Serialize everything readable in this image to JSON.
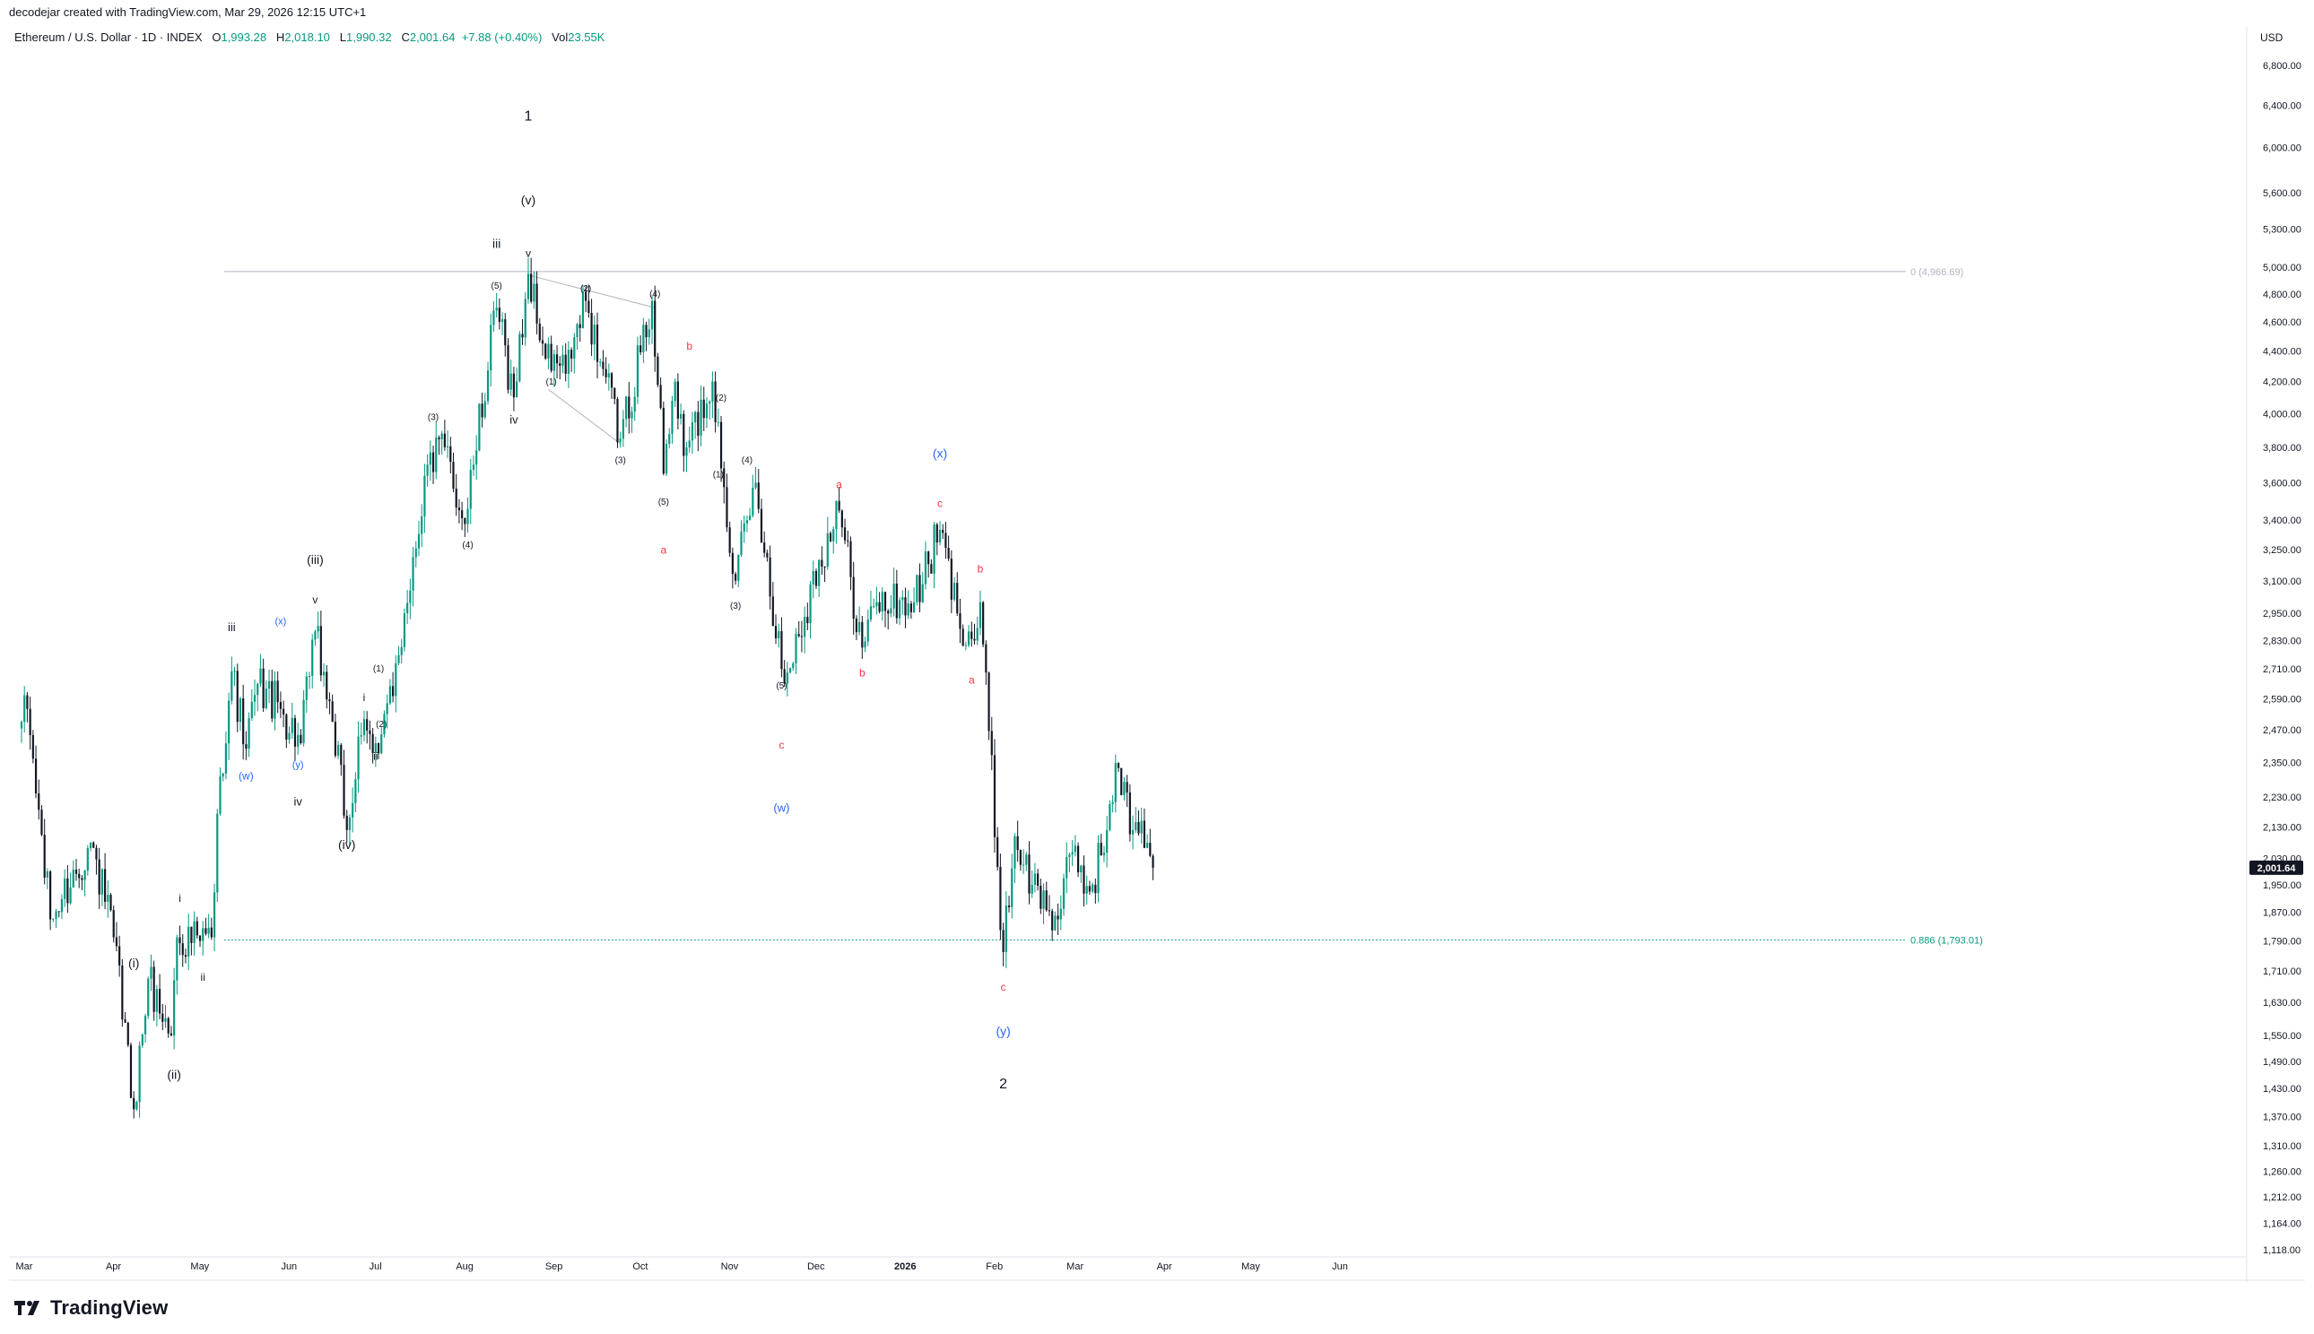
{
  "header": {
    "credit": "decodejar created with TradingView.com, Mar 29, 2026 12:15 UTC+1"
  },
  "legend": {
    "symbol": "Ethereum / U.S. Dollar · 1D · INDEX",
    "open_label": "O",
    "open": "1,993.28",
    "high_label": "H",
    "high": "2,018.10",
    "low_label": "L",
    "low": "1,990.32",
    "close_label": "C",
    "close": "2,001.64",
    "change": "+7.88 (+0.40%)",
    "vol_label": "Vol",
    "vol": "23.55K"
  },
  "axis": {
    "currency": "USD"
  },
  "brand": {
    "name": "TradingView"
  },
  "colors": {
    "up": "#089981",
    "down": "#131722",
    "blue": "#2962ff",
    "red": "#f23645",
    "fib0": "#b2b5be",
    "fib886": "#089981"
  },
  "chart_data": {
    "type": "candlestick",
    "title": "Ethereum / U.S. Dollar · 1D · INDEX",
    "y_scale": "log",
    "ylim": [
      1090,
      7000
    ],
    "y_ticks": [
      "6,800.00",
      "6,400.00",
      "6,000.00",
      "5,600.00",
      "5,300.00",
      "5,000.00",
      "4,800.00",
      "4,600.00",
      "4,400.00",
      "4,200.00",
      "4,000.00",
      "3,800.00",
      "3,600.00",
      "3,400.00",
      "3,250.00",
      "3,100.00",
      "2,950.00",
      "2,830.00",
      "2,710.00",
      "2,590.00",
      "2,470.00",
      "2,350.00",
      "2,230.00",
      "2,130.00",
      "2,030.00",
      "1,950.00",
      "1,870.00",
      "1,790.00",
      "1,710.00",
      "1,630.00",
      "1,550.00",
      "1,490.00",
      "1,430.00",
      "1,370.00",
      "1,310.00",
      "1,260.00",
      "1,212.00",
      "1,164.00",
      "1,118.00"
    ],
    "x_ticks": [
      {
        "label": "Mar",
        "date": "2025-03-01"
      },
      {
        "label": "Apr",
        "date": "2025-04-01"
      },
      {
        "label": "May",
        "date": "2025-05-01"
      },
      {
        "label": "Jun",
        "date": "2025-06-01"
      },
      {
        "label": "Jul",
        "date": "2025-07-01"
      },
      {
        "label": "Aug",
        "date": "2025-08-01"
      },
      {
        "label": "Sep",
        "date": "2025-09-01"
      },
      {
        "label": "Oct",
        "date": "2025-10-01"
      },
      {
        "label": "Nov",
        "date": "2025-11-01"
      },
      {
        "label": "Dec",
        "date": "2025-12-01"
      },
      {
        "label": "2026",
        "date": "2026-01-01"
      },
      {
        "label": "Feb",
        "date": "2026-02-01"
      },
      {
        "label": "Mar",
        "date": "2026-03-01"
      },
      {
        "label": "Apr",
        "date": "2026-04-01"
      },
      {
        "label": "May",
        "date": "2026-05-01"
      },
      {
        "label": "Jun",
        "date": "2026-06-01"
      }
    ],
    "last_price": "2,001.64",
    "fib_levels": [
      {
        "label": "0 (4,966.69)",
        "value": 4966.69
      },
      {
        "label": "0.886 (1,793.01)",
        "value": 1793.01
      }
    ],
    "swing_points": [
      {
        "date": "2025-03-01",
        "price": 2500
      },
      {
        "date": "2025-03-03",
        "price": 2550
      },
      {
        "date": "2025-03-11",
        "price": 1850
      },
      {
        "date": "2025-03-25",
        "price": 2080
      },
      {
        "date": "2025-04-02",
        "price": 1800
      },
      {
        "date": "2025-04-09",
        "price": 1385
      },
      {
        "date": "2025-04-14",
        "price": 1690
      },
      {
        "date": "2025-04-22",
        "price": 1550
      },
      {
        "date": "2025-04-24",
        "price": 1800
      },
      {
        "date": "2025-05-02",
        "price": 1790
      },
      {
        "date": "2025-05-06",
        "price": 1800
      },
      {
        "date": "2025-05-09",
        "price": 2300
      },
      {
        "date": "2025-05-13",
        "price": 2700
      },
      {
        "date": "2025-05-18",
        "price": 2400
      },
      {
        "date": "2025-05-22",
        "price": 2650
      },
      {
        "date": "2025-05-30",
        "price": 2550
      },
      {
        "date": "2025-06-06",
        "price": 2420
      },
      {
        "date": "2025-06-11",
        "price": 2870
      },
      {
        "date": "2025-06-17",
        "price": 2500
      },
      {
        "date": "2025-06-22",
        "price": 2120
      },
      {
        "date": "2025-06-27",
        "price": 2450
      },
      {
        "date": "2025-07-02",
        "price": 2420
      },
      {
        "date": "2025-07-08",
        "price": 2600
      },
      {
        "date": "2025-07-12",
        "price": 2950
      },
      {
        "date": "2025-07-20",
        "price": 3700
      },
      {
        "date": "2025-07-26",
        "price": 3800
      },
      {
        "date": "2025-08-02",
        "price": 3380
      },
      {
        "date": "2025-08-05",
        "price": 3700
      },
      {
        "date": "2025-08-13",
        "price": 4700
      },
      {
        "date": "2025-08-19",
        "price": 4100
      },
      {
        "date": "2025-08-24",
        "price": 4950
      },
      {
        "date": "2025-08-30",
        "price": 4350
      },
      {
        "date": "2025-09-06",
        "price": 4250
      },
      {
        "date": "2025-09-13",
        "price": 4750
      },
      {
        "date": "2025-09-25",
        "price": 3850
      },
      {
        "date": "2025-10-06",
        "price": 4750
      },
      {
        "date": "2025-10-10",
        "price": 3650
      },
      {
        "date": "2025-10-14",
        "price": 4200
      },
      {
        "date": "2025-10-17",
        "price": 3750
      },
      {
        "date": "2025-10-27",
        "price": 4200
      },
      {
        "date": "2025-11-04",
        "price": 3100
      },
      {
        "date": "2025-11-11",
        "price": 3600
      },
      {
        "date": "2025-11-21",
        "price": 2650
      },
      {
        "date": "2025-12-03",
        "price": 3200
      },
      {
        "date": "2025-12-10",
        "price": 3450
      },
      {
        "date": "2025-12-18",
        "price": 2800
      },
      {
        "date": "2025-12-23",
        "price": 3000
      },
      {
        "date": "2026-01-05",
        "price": 3000
      },
      {
        "date": "2026-01-14",
        "price": 3350
      },
      {
        "date": "2026-01-20",
        "price": 2950
      },
      {
        "date": "2026-01-26",
        "price": 2830
      },
      {
        "date": "2026-01-28",
        "price": 3000
      },
      {
        "date": "2026-02-05",
        "price": 1760
      },
      {
        "date": "2026-02-09",
        "price": 2100
      },
      {
        "date": "2026-02-15",
        "price": 1950
      },
      {
        "date": "2026-02-24",
        "price": 1850
      },
      {
        "date": "2026-03-01",
        "price": 2050
      },
      {
        "date": "2026-03-07",
        "price": 1930
      },
      {
        "date": "2026-03-13",
        "price": 2120
      },
      {
        "date": "2026-03-17",
        "price": 2330
      },
      {
        "date": "2026-03-22",
        "price": 2120
      },
      {
        "date": "2026-03-25",
        "price": 2150
      },
      {
        "date": "2026-03-29",
        "price": 2001.64
      }
    ],
    "triangle": [
      {
        "date": "2025-08-24",
        "price": 4940
      },
      {
        "date": "2025-10-07",
        "price": 4700
      },
      {
        "date": "2025-08-31",
        "price": 4150
      },
      {
        "date": "2025-09-25",
        "price": 3820
      }
    ],
    "wave_labels": [
      {
        "text": "(i)",
        "date": "2025-04-09",
        "price": 1720,
        "color": "#131722",
        "size": 14
      },
      {
        "text": "(ii)",
        "date": "2025-04-23",
        "price": 1450,
        "color": "#131722",
        "size": 14
      },
      {
        "text": "i",
        "date": "2025-04-25",
        "price": 1900,
        "color": "#131722",
        "size": 12
      },
      {
        "text": "ii",
        "date": "2025-05-03",
        "price": 1685,
        "color": "#131722",
        "size": 12
      },
      {
        "text": "iii",
        "date": "2025-05-13",
        "price": 2870,
        "color": "#131722",
        "size": 13
      },
      {
        "text": "(w)",
        "date": "2025-05-18",
        "price": 2290,
        "color": "#2962ff",
        "size": 12
      },
      {
        "text": "(x)",
        "date": "2025-05-30",
        "price": 2900,
        "color": "#2962ff",
        "size": 11
      },
      {
        "text": "(y)",
        "date": "2025-06-05",
        "price": 2330,
        "color": "#2962ff",
        "size": 11
      },
      {
        "text": "iv",
        "date": "2025-06-05",
        "price": 2200,
        "color": "#131722",
        "size": 13
      },
      {
        "text": "(iii)",
        "date": "2025-06-11",
        "price": 3180,
        "color": "#131722",
        "size": 14
      },
      {
        "text": "v",
        "date": "2025-06-11",
        "price": 2995,
        "color": "#131722",
        "size": 12
      },
      {
        "text": "(iv)",
        "date": "2025-06-22",
        "price": 2060,
        "color": "#131722",
        "size": 14
      },
      {
        "text": "i",
        "date": "2025-06-28",
        "price": 2580,
        "color": "#131722",
        "size": 12
      },
      {
        "text": "ii",
        "date": "2025-07-02",
        "price": 2360,
        "color": "#131722",
        "size": 12
      },
      {
        "text": "(1)",
        "date": "2025-07-03",
        "price": 2700,
        "color": "#131722",
        "size": 10
      },
      {
        "text": "(2)",
        "date": "2025-07-04",
        "price": 2480,
        "color": "#131722",
        "size": 10
      },
      {
        "text": "(3)",
        "date": "2025-07-22",
        "price": 3960,
        "color": "#131722",
        "size": 10
      },
      {
        "text": "(4)",
        "date": "2025-08-03",
        "price": 3260,
        "color": "#131722",
        "size": 10
      },
      {
        "text": "iii",
        "date": "2025-08-13",
        "price": 5150,
        "color": "#131722",
        "size": 14
      },
      {
        "text": "(5)",
        "date": "2025-08-13",
        "price": 4840,
        "color": "#131722",
        "size": 10
      },
      {
        "text": "iv",
        "date": "2025-08-19",
        "price": 3940,
        "color": "#131722",
        "size": 13
      },
      {
        "text": "1",
        "date": "2025-08-24",
        "price": 6250,
        "color": "#131722",
        "size": 16
      },
      {
        "text": "(v)",
        "date": "2025-08-24",
        "price": 5500,
        "color": "#131722",
        "size": 14
      },
      {
        "text": "v",
        "date": "2025-08-24",
        "price": 5080,
        "color": "#131722",
        "size": 12
      },
      {
        "text": "(1)",
        "date": "2025-09-01",
        "price": 4180,
        "color": "#131722",
        "size": 10
      },
      {
        "text": "(2)",
        "date": "2025-09-13",
        "price": 4820,
        "color": "#131722",
        "size": 10
      },
      {
        "text": "(3)",
        "date": "2025-09-25",
        "price": 3710,
        "color": "#131722",
        "size": 10
      },
      {
        "text": "(4)",
        "date": "2025-10-07",
        "price": 4780,
        "color": "#131722",
        "size": 10
      },
      {
        "text": "(5)",
        "date": "2025-10-10",
        "price": 3480,
        "color": "#131722",
        "size": 10
      },
      {
        "text": "a",
        "date": "2025-10-10",
        "price": 3230,
        "color": "#f23645",
        "size": 12
      },
      {
        "text": "b",
        "date": "2025-10-19",
        "price": 4410,
        "color": "#f23645",
        "size": 12
      },
      {
        "text": "(1)",
        "date": "2025-10-29",
        "price": 3630,
        "color": "#131722",
        "size": 10
      },
      {
        "text": "(2)",
        "date": "2025-10-30",
        "price": 4080,
        "color": "#131722",
        "size": 10
      },
      {
        "text": "(3)",
        "date": "2025-11-04",
        "price": 2970,
        "color": "#131722",
        "size": 10
      },
      {
        "text": "(4)",
        "date": "2025-11-08",
        "price": 3710,
        "color": "#131722",
        "size": 10
      },
      {
        "text": "(5)",
        "date": "2025-11-20",
        "price": 2630,
        "color": "#131722",
        "size": 10
      },
      {
        "text": "c",
        "date": "2025-11-20",
        "price": 2400,
        "color": "#f23645",
        "size": 12
      },
      {
        "text": "(w)",
        "date": "2025-11-20",
        "price": 2180,
        "color": "#2962ff",
        "size": 13
      },
      {
        "text": "a",
        "date": "2025-12-10",
        "price": 3570,
        "color": "#f23645",
        "size": 12
      },
      {
        "text": "b",
        "date": "2025-12-18",
        "price": 2680,
        "color": "#f23645",
        "size": 12
      },
      {
        "text": "(x)",
        "date": "2026-01-14",
        "price": 3740,
        "color": "#2962ff",
        "size": 14
      },
      {
        "text": "c",
        "date": "2026-01-14",
        "price": 3470,
        "color": "#f23645",
        "size": 12
      },
      {
        "text": "b",
        "date": "2026-01-28",
        "price": 3140,
        "color": "#f23645",
        "size": 12
      },
      {
        "text": "a",
        "date": "2026-01-25",
        "price": 2650,
        "color": "#f23645",
        "size": 12
      },
      {
        "text": "c",
        "date": "2026-02-05",
        "price": 1660,
        "color": "#f23645",
        "size": 12
      },
      {
        "text": "(y)",
        "date": "2026-02-05",
        "price": 1550,
        "color": "#2962ff",
        "size": 14
      },
      {
        "text": "2",
        "date": "2026-02-05",
        "price": 1430,
        "color": "#131722",
        "size": 16
      }
    ]
  }
}
